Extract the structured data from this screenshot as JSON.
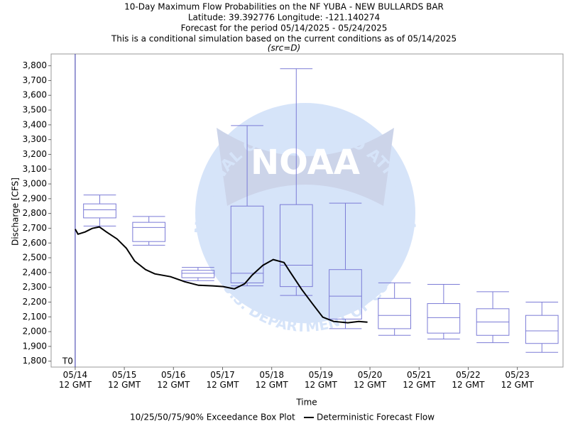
{
  "chart_data": {
    "type": "box",
    "title": [
      "10-Day Maximum Flow Probabilities on the NF YUBA - NEW BULLARDS BAR",
      "Latitude: 39.392776 Longitude: -121.140274",
      "Forecast for the period 05/14/2025 - 05/24/2025",
      "This is a conditional simulation based on the current conditions as of 05/14/2025"
    ],
    "subtitle": "(src=D)",
    "ylabel": "Discharge [CFS]",
    "xlabel": "Time",
    "xlim": [
      -0.49,
      9.93
    ],
    "xticks": [
      {
        "value": 0,
        "label": "05/14\n12 GMT"
      },
      {
        "value": 1,
        "label": "05/15\n12 GMT"
      },
      {
        "value": 2,
        "label": "05/16\n12 GMT"
      },
      {
        "value": 3,
        "label": "05/17\n12 GMT"
      },
      {
        "value": 4,
        "label": "05/18\n12 GMT"
      },
      {
        "value": 5,
        "label": "05/19\n12 GMT"
      },
      {
        "value": 6,
        "label": "05/20\n12 GMT"
      },
      {
        "value": 7,
        "label": "05/21\n12 GMT"
      },
      {
        "value": 8,
        "label": "05/22\n12 GMT"
      },
      {
        "value": 9,
        "label": "05/23\n12 GMT"
      }
    ],
    "ylim": [
      1760,
      3880
    ],
    "yticks": [
      {
        "value": 1800,
        "label": "1,800"
      },
      {
        "value": 1900,
        "label": "1,900"
      },
      {
        "value": 2000,
        "label": "2,000"
      },
      {
        "value": 2100,
        "label": "2,100"
      },
      {
        "value": 2200,
        "label": "2,200"
      },
      {
        "value": 2300,
        "label": "2,300"
      },
      {
        "value": 2400,
        "label": "2,400"
      },
      {
        "value": 2500,
        "label": "2,500"
      },
      {
        "value": 2600,
        "label": "2,600"
      },
      {
        "value": 2700,
        "label": "2,700"
      },
      {
        "value": 2800,
        "label": "2,800"
      },
      {
        "value": 2900,
        "label": "2,900"
      },
      {
        "value": 3000,
        "label": "3,000"
      },
      {
        "value": 3100,
        "label": "3,100"
      },
      {
        "value": 3200,
        "label": "3,200"
      },
      {
        "value": 3300,
        "label": "3,300"
      },
      {
        "value": 3400,
        "label": "3,400"
      },
      {
        "value": 3500,
        "label": "3,500"
      },
      {
        "value": 3600,
        "label": "3,600"
      },
      {
        "value": 3700,
        "label": "3,700"
      },
      {
        "value": 3800,
        "label": "3,800"
      }
    ],
    "boxes": {
      "name": "10/25/50/75/90% Exceedance Box Plot",
      "color": "#7b7bd6",
      "x": [
        0.5,
        1.5,
        2.5,
        3.5,
        4.5,
        5.5,
        6.5,
        7.5,
        8.5,
        9.5
      ],
      "low": [
        2715,
        2585,
        2345,
        2310,
        2245,
        2020,
        1975,
        1950,
        1925,
        1860
      ],
      "q1": [
        2770,
        2610,
        2365,
        2330,
        2305,
        2085,
        2020,
        1990,
        1975,
        1920
      ],
      "median": [
        2825,
        2705,
        2395,
        2395,
        2450,
        2240,
        2110,
        2095,
        2065,
        2005
      ],
      "q3": [
        2865,
        2740,
        2415,
        2850,
        2860,
        2420,
        2225,
        2190,
        2155,
        2110
      ],
      "high": [
        2925,
        2780,
        2435,
        3395,
        3780,
        2870,
        2330,
        2320,
        2270,
        2200
      ]
    },
    "line": {
      "name": "Deterministic Forecast Flow",
      "color": "#000000",
      "x": [
        0,
        0.058,
        0.202,
        0.347,
        0.491,
        0.636,
        0.853,
        1.04,
        1.21,
        1.43,
        1.62,
        1.94,
        2.23,
        2.51,
        2.8,
        3.01,
        3.24,
        3.45,
        3.6,
        3.82,
        4.03,
        4.25,
        4.39,
        4.61,
        4.83,
        5.04,
        5.26,
        5.55,
        5.77,
        5.95
      ],
      "values": [
        2694,
        2660,
        2675,
        2699,
        2709,
        2675,
        2627,
        2565,
        2478,
        2420,
        2391,
        2372,
        2338,
        2314,
        2310,
        2305,
        2290,
        2324,
        2382,
        2449,
        2488,
        2468,
        2396,
        2286,
        2189,
        2098,
        2069,
        2060,
        2069,
        2064
      ]
    },
    "annotation": {
      "text": "T0",
      "x": 0,
      "color": "#3333aa"
    },
    "watermark": {
      "name": "NOAA",
      "ring_top": "NATIONAL OCEANIC AND ATMOSPHERIC ADMINISTRATION",
      "ring_bottom": "U.S. DEPARTMENT OF COMMERCE"
    }
  }
}
